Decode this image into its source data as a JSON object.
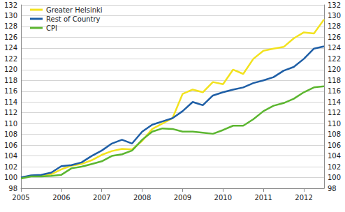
{
  "chart_data": {
    "type": "line",
    "categories": [
      "2005",
      null,
      null,
      null,
      "2006",
      null,
      null,
      null,
      "2007",
      null,
      null,
      null,
      "2008",
      null,
      null,
      null,
      "2009",
      null,
      null,
      null,
      "2010",
      null,
      null,
      null,
      "2011",
      null,
      null,
      null,
      "2012",
      null,
      null
    ],
    "series": [
      {
        "name": "Greater Helsinki",
        "color": "#f2e21e",
        "values": [
          100,
          100.3,
          100.4,
          100.6,
          101.5,
          102.2,
          102.5,
          103.2,
          104.2,
          104.9,
          105.3,
          105.2,
          106.8,
          109.0,
          110.0,
          111.0,
          115.5,
          116.3,
          115.8,
          117.7,
          117.3,
          120.0,
          119.2,
          122.0,
          123.5,
          123.9,
          124.2,
          125.8,
          126.9,
          126.7,
          129.3
        ]
      },
      {
        "name": "Rest of Country",
        "color": "#1f5fa6",
        "values": [
          100,
          100.4,
          100.5,
          100.9,
          102.1,
          102.3,
          102.8,
          104.0,
          105.0,
          106.3,
          107.0,
          106.3,
          108.5,
          109.8,
          110.4,
          111.0,
          112.3,
          114.0,
          113.4,
          115.2,
          115.8,
          116.3,
          116.7,
          117.5,
          118.0,
          118.6,
          119.8,
          120.5,
          122.0,
          123.9,
          124.3
        ]
      },
      {
        "name": "CPI",
        "color": "#5cb630",
        "values": [
          99.8,
          100.2,
          100.2,
          100.3,
          100.5,
          101.7,
          102.0,
          102.5,
          103.0,
          104.0,
          104.3,
          105.0,
          107.0,
          108.5,
          109.1,
          109.0,
          108.5,
          108.5,
          108.3,
          108.1,
          108.8,
          109.6,
          109.6,
          110.8,
          112.3,
          113.3,
          113.8,
          114.6,
          115.8,
          116.7,
          116.9
        ]
      }
    ],
    "ylim": [
      98,
      132
    ],
    "yticks": [
      98,
      100,
      102,
      104,
      106,
      108,
      110,
      112,
      114,
      116,
      118,
      120,
      122,
      124,
      126,
      128,
      130,
      132
    ],
    "grid": true,
    "legend": "upper left"
  }
}
